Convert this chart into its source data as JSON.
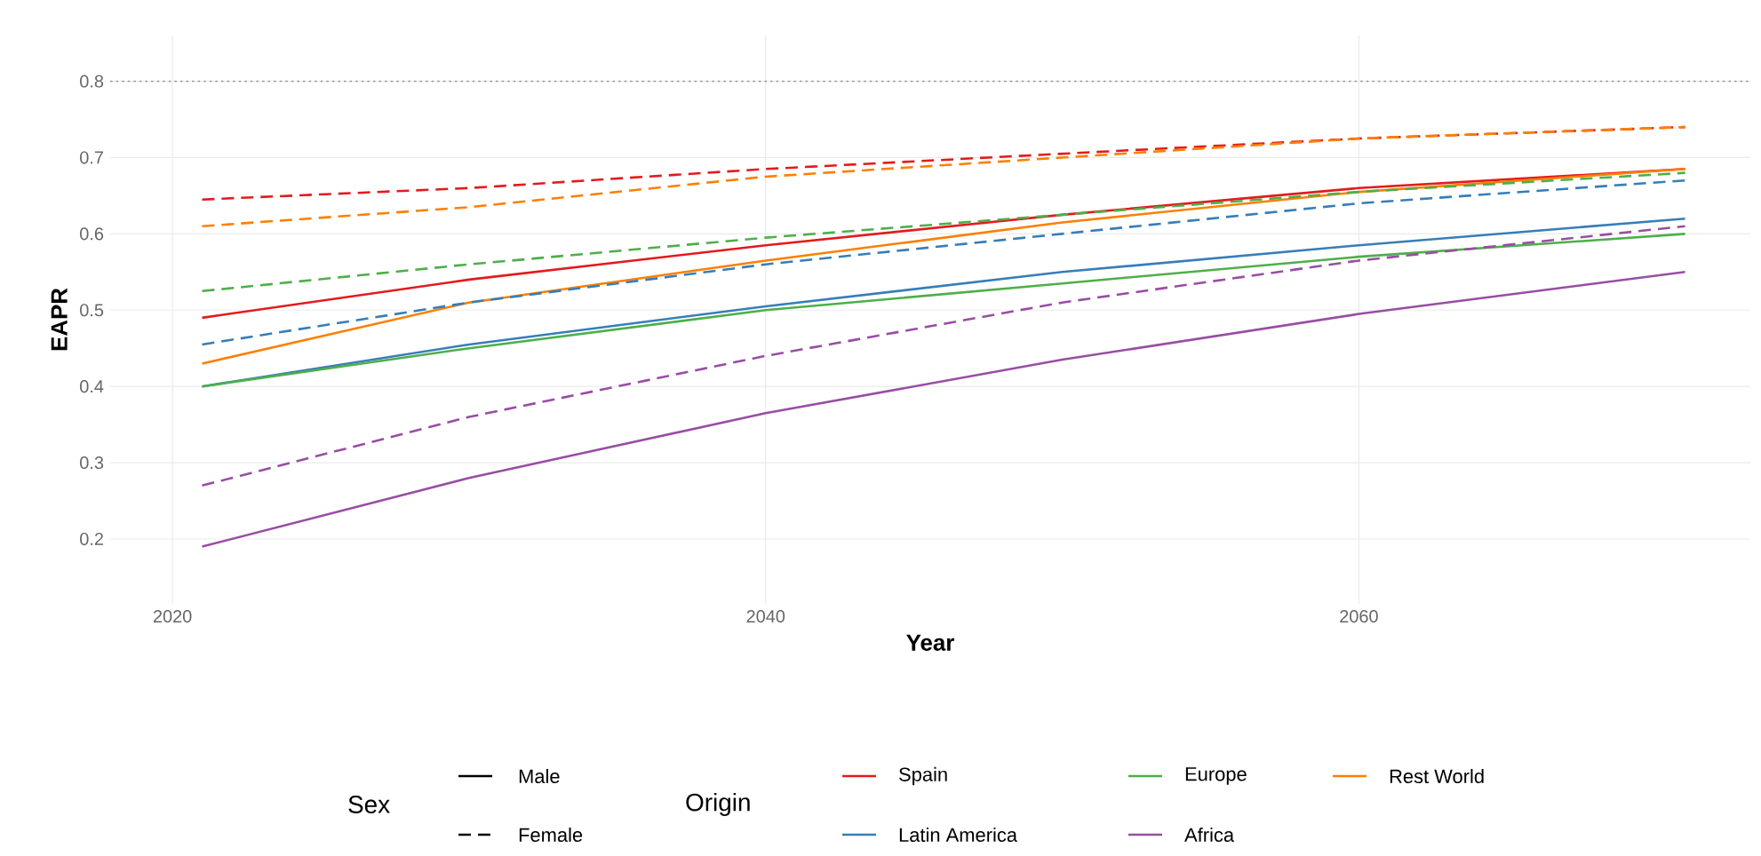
{
  "chart_data": {
    "type": "line",
    "xlabel": "Year",
    "ylabel": "EAPR",
    "legend_title": "Origin",
    "annotations": [
      "Sex",
      "Male",
      "Female"
    ],
    "xlim": [
      2017.9,
      2073.2
    ],
    "ylim": [
      0.115,
      0.86
    ],
    "xticks": [
      2020,
      2040,
      2060
    ],
    "yticks": [
      0.2,
      0.3,
      0.4,
      0.5,
      0.6,
      0.7,
      0.8
    ],
    "grid": true,
    "legend": "bottom",
    "ref_lines": [
      {
        "axis": "y",
        "value": 0.8,
        "color": "#999999",
        "line_style": "dotted"
      }
    ],
    "x": [
      2021,
      2030,
      2040,
      2050,
      2060,
      2071
    ],
    "series": [
      {
        "name": "Spain",
        "color": "#e41a1c",
        "line_style": "solid",
        "values": [
          0.49,
          0.54,
          0.585,
          0.625,
          0.66,
          0.685
        ]
      },
      {
        "name": "Latin America",
        "color": "#377eb8",
        "line_style": "solid",
        "values": [
          0.4,
          0.455,
          0.505,
          0.55,
          0.585,
          0.62
        ]
      },
      {
        "name": "Europe",
        "color": "#4daf4a",
        "line_style": "solid",
        "values": [
          0.4,
          0.45,
          0.5,
          0.535,
          0.57,
          0.6
        ]
      },
      {
        "name": "Africa",
        "color": "#984ea3",
        "line_style": "solid",
        "values": [
          0.19,
          0.28,
          0.365,
          0.435,
          0.495,
          0.55
        ]
      },
      {
        "name": "Rest World",
        "color": "#ff7f00",
        "line_style": "solid",
        "values": [
          0.43,
          0.51,
          0.565,
          0.615,
          0.655,
          0.685
        ]
      },
      {
        "color": "#e41a1c",
        "line_style": "dashed",
        "values": [
          0.645,
          0.66,
          0.685,
          0.705,
          0.725,
          0.74
        ]
      },
      {
        "color": "#377eb8",
        "line_style": "dashed",
        "values": [
          0.455,
          0.51,
          0.56,
          0.6,
          0.64,
          0.67
        ]
      },
      {
        "color": "#4daf4a",
        "line_style": "dashed",
        "values": [
          0.525,
          0.56,
          0.595,
          0.625,
          0.655,
          0.68
        ]
      },
      {
        "color": "#984ea3",
        "line_style": "dashed",
        "values": [
          0.27,
          0.36,
          0.44,
          0.51,
          0.565,
          0.61
        ]
      },
      {
        "color": "#ff7f00",
        "line_style": "dashed",
        "values": [
          0.61,
          0.635,
          0.675,
          0.7,
          0.725,
          0.74
        ]
      }
    ]
  }
}
